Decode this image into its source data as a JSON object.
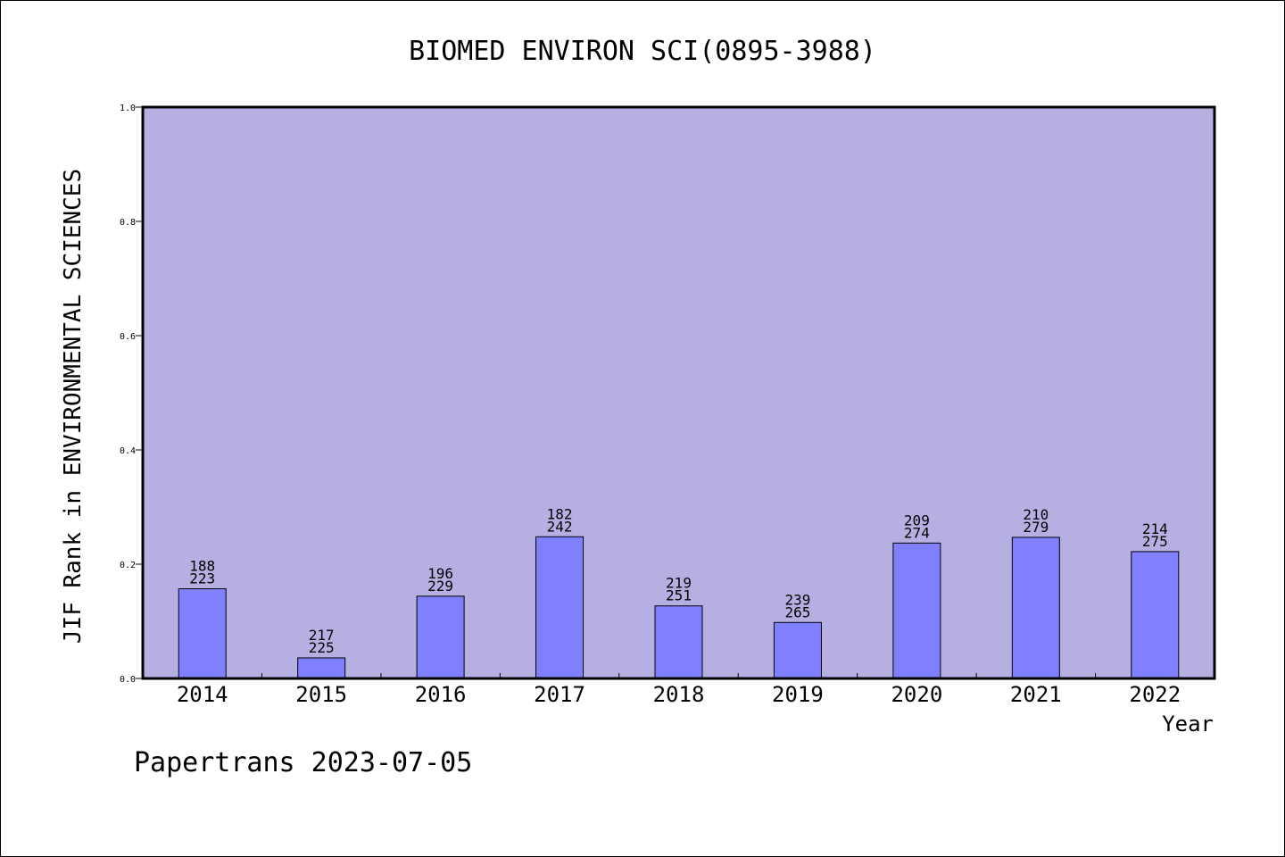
{
  "chart_data": {
    "type": "bar",
    "title": "BIOMED ENVIRON SCI(0895-3988)",
    "xlabel": "Year",
    "ylabel": "JIF Rank in ENVIRONMENTAL SCIENCES",
    "ylim": [
      0,
      1.0
    ],
    "yticks": [
      "0.0",
      "0.2",
      "0.4",
      "0.6",
      "0.8",
      "1.0"
    ],
    "categories": [
      "2014",
      "2015",
      "2016",
      "2017",
      "2018",
      "2019",
      "2020",
      "2021",
      "2022"
    ],
    "values": [
      0.157,
      0.036,
      0.144,
      0.248,
      0.127,
      0.098,
      0.237,
      0.247,
      0.222
    ],
    "rank_labels": [
      "188",
      "217",
      "196",
      "182",
      "219",
      "239",
      "209",
      "210",
      "214"
    ],
    "total_labels": [
      "223",
      "225",
      "229",
      "242",
      "251",
      "265",
      "274",
      "279",
      "275"
    ],
    "grid": false,
    "legend": "none",
    "colors": {
      "plot_background": "#b6b0e2",
      "bar_fill": "#8080ff",
      "bar_stroke": "#000000"
    }
  },
  "footer": "Papertrans 2023-07-05"
}
